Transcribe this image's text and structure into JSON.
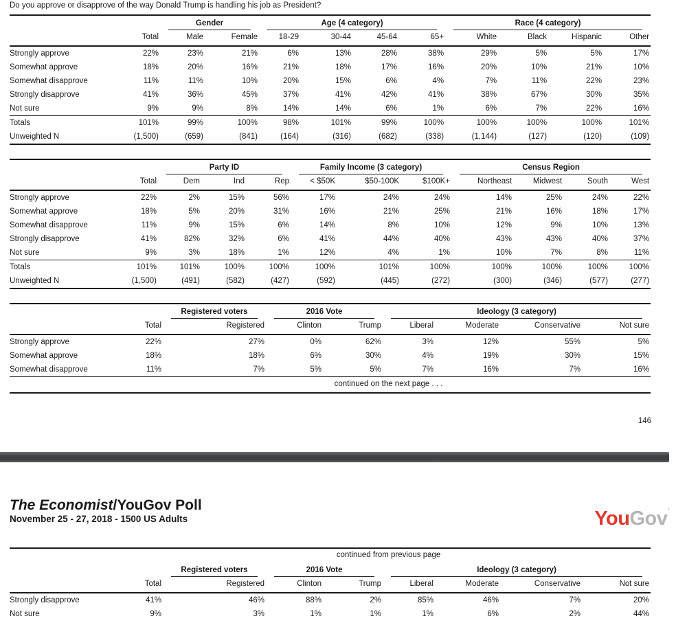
{
  "question": "Do you approve or disapprove of the way Donald Trump is handling his job as President?",
  "page_number": "146",
  "continued_next": "continued on the next page . . .",
  "continued_prev": "continued from previous page",
  "page2_header": {
    "title_italic": "The Economist",
    "title_rest": "/YouGov Poll",
    "subtitle": "November 25 - 27, 2018 - 1500 US Adults",
    "logo": {
      "you": "You",
      "gov": "Gov",
      "tick": "’",
      "color_you": "#e0392e",
      "color_gov": "#b5b5b5"
    }
  },
  "tables": [
    {
      "groups": [
        {
          "label": "Gender"
        },
        {
          "label": "Age (4 category)"
        },
        {
          "label": "Race (4 category)"
        }
      ],
      "subheaders": [
        "",
        "Total",
        "Male",
        "Female",
        "18-29",
        "30-44",
        "45-64",
        "65+",
        "White",
        "Black",
        "Hispanic",
        "Other"
      ],
      "rows": [
        [
          "Strongly approve",
          "22%",
          "23%",
          "21%",
          "6%",
          "13%",
          "28%",
          "38%",
          "29%",
          "5%",
          "5%",
          "17%"
        ],
        [
          "Somewhat approve",
          "18%",
          "20%",
          "16%",
          "21%",
          "18%",
          "17%",
          "16%",
          "20%",
          "10%",
          "21%",
          "10%"
        ],
        [
          "Somewhat disapprove",
          "11%",
          "11%",
          "10%",
          "20%",
          "15%",
          "6%",
          "4%",
          "7%",
          "11%",
          "22%",
          "23%"
        ],
        [
          "Strongly disapprove",
          "41%",
          "36%",
          "45%",
          "37%",
          "41%",
          "42%",
          "41%",
          "38%",
          "67%",
          "30%",
          "35%"
        ],
        [
          "Not sure",
          "9%",
          "9%",
          "8%",
          "14%",
          "14%",
          "6%",
          "1%",
          "6%",
          "7%",
          "22%",
          "16%"
        ]
      ],
      "totals": [
        [
          "Totals",
          "101%",
          "99%",
          "100%",
          "98%",
          "101%",
          "99%",
          "100%",
          "100%",
          "100%",
          "100%",
          "101%"
        ],
        [
          "Unweighted N",
          "(1,500)",
          "(659)",
          "(841)",
          "(164)",
          "(316)",
          "(682)",
          "(338)",
          "(1,144)",
          "(127)",
          "(120)",
          "(109)"
        ]
      ]
    },
    {
      "groups": [
        {
          "label": "Party ID"
        },
        {
          "label": "Family Income (3 category)"
        },
        {
          "label": "Census Region"
        }
      ],
      "subheaders": [
        "",
        "Total",
        "Dem",
        "Ind",
        "Rep",
        "< $50K",
        "$50-100K",
        "$100K+",
        "Northeast",
        "Midwest",
        "South",
        "West"
      ],
      "rows": [
        [
          "Strongly approve",
          "22%",
          "2%",
          "15%",
          "56%",
          "17%",
          "24%",
          "24%",
          "14%",
          "25%",
          "24%",
          "22%"
        ],
        [
          "Somewhat approve",
          "18%",
          "5%",
          "20%",
          "31%",
          "16%",
          "21%",
          "25%",
          "21%",
          "16%",
          "18%",
          "17%"
        ],
        [
          "Somewhat disapprove",
          "11%",
          "9%",
          "15%",
          "6%",
          "14%",
          "8%",
          "10%",
          "12%",
          "9%",
          "10%",
          "13%"
        ],
        [
          "Strongly disapprove",
          "41%",
          "82%",
          "32%",
          "6%",
          "41%",
          "44%",
          "40%",
          "43%",
          "43%",
          "40%",
          "37%"
        ],
        [
          "Not sure",
          "9%",
          "3%",
          "18%",
          "1%",
          "12%",
          "4%",
          "1%",
          "10%",
          "7%",
          "8%",
          "11%"
        ]
      ],
      "totals": [
        [
          "Totals",
          "101%",
          "101%",
          "100%",
          "100%",
          "100%",
          "101%",
          "100%",
          "100%",
          "100%",
          "100%",
          "100%"
        ],
        [
          "Unweighted N",
          "(1,500)",
          "(491)",
          "(582)",
          "(427)",
          "(592)",
          "(445)",
          "(272)",
          "(300)",
          "(346)",
          "(577)",
          "(277)"
        ]
      ]
    },
    {
      "groups": [
        {
          "label": "Registered voters"
        },
        {
          "label": "2016 Vote"
        },
        {
          "label": "Ideology (3 category)"
        }
      ],
      "subheaders": [
        "",
        "Total",
        "Registered",
        "Clinton",
        "Trump",
        "Liberal",
        "Moderate",
        "Conservative",
        "Not sure"
      ],
      "rows": [
        [
          "Strongly approve",
          "22%",
          "27%",
          "0%",
          "62%",
          "3%",
          "12%",
          "55%",
          "5%"
        ],
        [
          "Somewhat approve",
          "18%",
          "18%",
          "6%",
          "30%",
          "4%",
          "19%",
          "30%",
          "15%"
        ],
        [
          "Somewhat disapprove",
          "11%",
          "7%",
          "5%",
          "5%",
          "7%",
          "16%",
          "7%",
          "16%"
        ]
      ]
    },
    {
      "groups": [
        {
          "label": "Registered voters"
        },
        {
          "label": "2016 Vote"
        },
        {
          "label": "Ideology (3 category)"
        }
      ],
      "subheaders": [
        "",
        "Total",
        "Registered",
        "Clinton",
        "Trump",
        "Liberal",
        "Moderate",
        "Conservative",
        "Not sure"
      ],
      "rows": [
        [
          "Strongly disapprove",
          "41%",
          "46%",
          "88%",
          "2%",
          "85%",
          "46%",
          "7%",
          "20%"
        ],
        [
          "Not sure",
          "9%",
          "3%",
          "1%",
          "1%",
          "1%",
          "6%",
          "2%",
          "44%"
        ]
      ]
    }
  ]
}
